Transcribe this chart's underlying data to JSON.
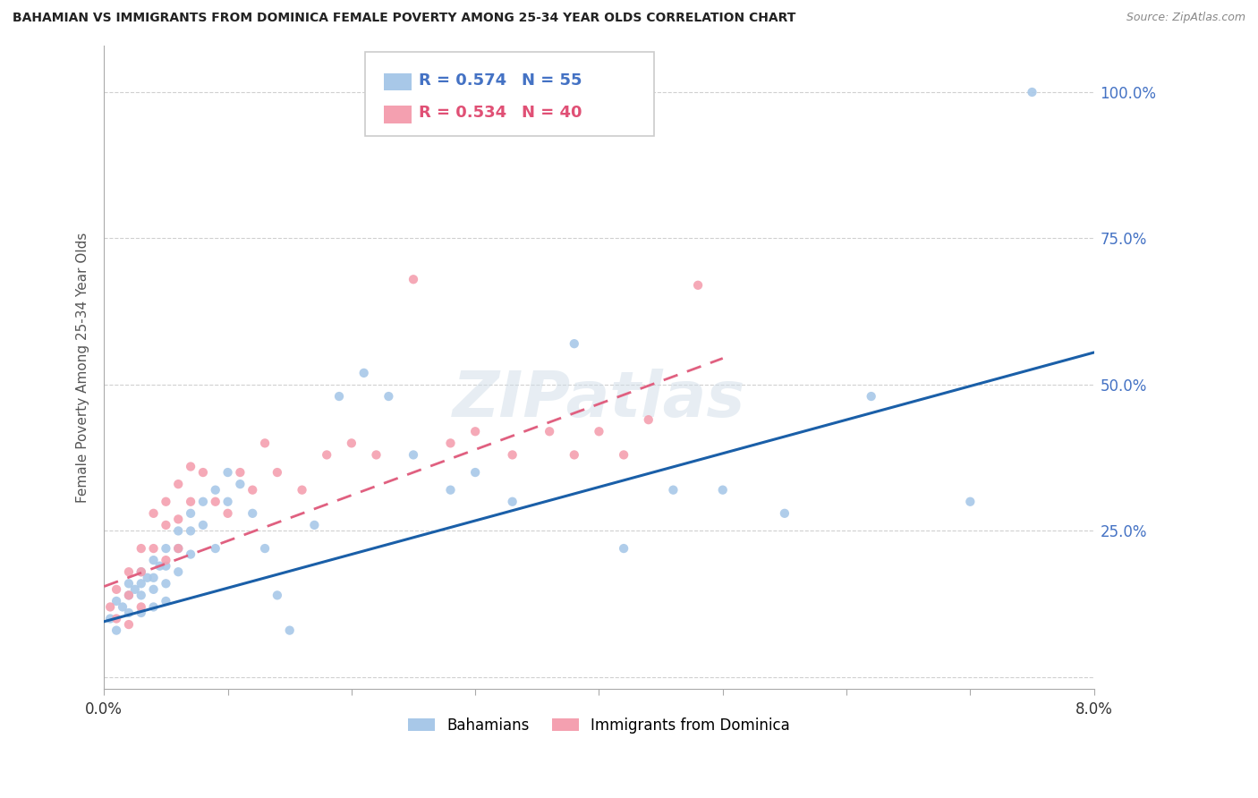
{
  "title": "BAHAMIAN VS IMMIGRANTS FROM DOMINICA FEMALE POVERTY AMONG 25-34 YEAR OLDS CORRELATION CHART",
  "source": "Source: ZipAtlas.com",
  "ylabel": "Female Poverty Among 25-34 Year Olds",
  "xlim": [
    0.0,
    0.08
  ],
  "ylim": [
    -0.02,
    1.08
  ],
  "yticks": [
    0.0,
    0.25,
    0.5,
    0.75,
    1.0
  ],
  "grid_color": "#d0d0d0",
  "grid_style": "--",
  "bahamians_color": "#a8c8e8",
  "dominica_color": "#f4a0b0",
  "bahamians_line_color": "#1a5fa8",
  "dominica_line_color": "#e06080",
  "legend_R1": "R = 0.574",
  "legend_N1": "N = 55",
  "legend_R2": "R = 0.534",
  "legend_N2": "N = 40",
  "bah_line_x0": 0.0,
  "bah_line_y0": 0.095,
  "bah_line_x1": 0.08,
  "bah_line_y1": 0.555,
  "dom_line_x0": 0.0,
  "dom_line_y0": 0.155,
  "dom_line_x1": 0.05,
  "dom_line_y1": 0.545,
  "bahamians_x": [
    0.0005,
    0.001,
    0.001,
    0.0015,
    0.002,
    0.002,
    0.002,
    0.0025,
    0.003,
    0.003,
    0.003,
    0.003,
    0.0035,
    0.004,
    0.004,
    0.004,
    0.004,
    0.0045,
    0.005,
    0.005,
    0.005,
    0.005,
    0.006,
    0.006,
    0.006,
    0.007,
    0.007,
    0.007,
    0.008,
    0.008,
    0.009,
    0.009,
    0.01,
    0.01,
    0.011,
    0.012,
    0.013,
    0.014,
    0.015,
    0.017,
    0.019,
    0.021,
    0.023,
    0.025,
    0.028,
    0.03,
    0.033,
    0.038,
    0.042,
    0.046,
    0.05,
    0.055,
    0.062,
    0.07,
    0.075
  ],
  "bahamians_y": [
    0.1,
    0.08,
    0.13,
    0.12,
    0.16,
    0.14,
    0.11,
    0.15,
    0.18,
    0.16,
    0.14,
    0.11,
    0.17,
    0.2,
    0.17,
    0.15,
    0.12,
    0.19,
    0.22,
    0.19,
    0.16,
    0.13,
    0.25,
    0.22,
    0.18,
    0.28,
    0.25,
    0.21,
    0.3,
    0.26,
    0.32,
    0.22,
    0.35,
    0.3,
    0.33,
    0.28,
    0.22,
    0.14,
    0.08,
    0.26,
    0.48,
    0.52,
    0.48,
    0.38,
    0.32,
    0.35,
    0.3,
    0.57,
    0.22,
    0.32,
    0.32,
    0.28,
    0.48,
    0.3,
    1.0
  ],
  "dominica_x": [
    0.0005,
    0.001,
    0.001,
    0.002,
    0.002,
    0.002,
    0.003,
    0.003,
    0.003,
    0.004,
    0.004,
    0.005,
    0.005,
    0.005,
    0.006,
    0.006,
    0.006,
    0.007,
    0.007,
    0.008,
    0.009,
    0.01,
    0.011,
    0.012,
    0.013,
    0.014,
    0.016,
    0.018,
    0.02,
    0.022,
    0.025,
    0.028,
    0.03,
    0.033,
    0.036,
    0.038,
    0.04,
    0.042,
    0.044,
    0.048
  ],
  "dominica_y": [
    0.12,
    0.15,
    0.1,
    0.18,
    0.14,
    0.09,
    0.22,
    0.18,
    0.12,
    0.28,
    0.22,
    0.3,
    0.26,
    0.2,
    0.33,
    0.27,
    0.22,
    0.36,
    0.3,
    0.35,
    0.3,
    0.28,
    0.35,
    0.32,
    0.4,
    0.35,
    0.32,
    0.38,
    0.4,
    0.38,
    0.68,
    0.4,
    0.42,
    0.38,
    0.42,
    0.38,
    0.42,
    0.38,
    0.44,
    0.67
  ]
}
